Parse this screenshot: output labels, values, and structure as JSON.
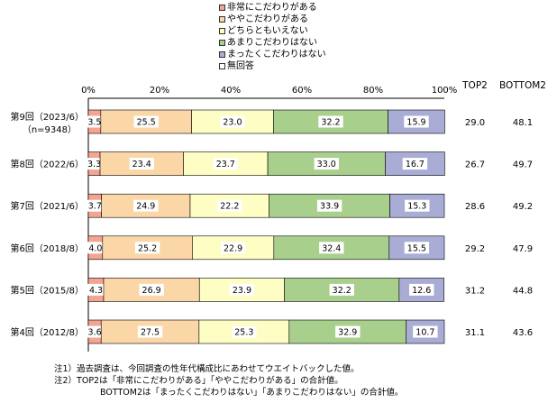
{
  "chart_data": {
    "type": "bar",
    "orientation": "horizontal-stacked-100",
    "categories": [
      "第9回（2023/6）\n（n=9348）",
      "第8回（2022/6）",
      "第7回（2021/6）",
      "第6回（2018/8）",
      "第5回（2015/8）",
      "第4回（2012/8）"
    ],
    "series": [
      {
        "name": "非常にこだわりがある",
        "color": "#f4a491",
        "values": [
          3.5,
          3.3,
          3.7,
          4.0,
          4.3,
          3.6
        ]
      },
      {
        "name": "ややこだわりがある",
        "color": "#fbd7a8",
        "values": [
          25.5,
          23.4,
          24.9,
          25.2,
          26.9,
          27.5
        ]
      },
      {
        "name": "どちらともいえない",
        "color": "#fdfdc4",
        "values": [
          23.0,
          23.7,
          22.2,
          22.9,
          23.9,
          25.3
        ]
      },
      {
        "name": "あまりこだわりはない",
        "color": "#a8cf8c",
        "values": [
          32.2,
          33.0,
          33.9,
          32.4,
          32.2,
          32.9
        ]
      },
      {
        "name": "まったくこだわりはない",
        "color": "#a9add5",
        "values": [
          15.9,
          16.7,
          15.3,
          15.5,
          12.6,
          10.7
        ]
      },
      {
        "name": "無回答",
        "color": "#ffffff",
        "values": [
          0,
          0,
          0,
          0,
          0,
          0
        ]
      }
    ],
    "xlim": [
      0,
      100
    ],
    "xticks": [
      "0%",
      "20%",
      "40%",
      "60%",
      "80%",
      "100%"
    ],
    "value_labels": [
      [
        "3.5",
        "25.5",
        "23.0",
        "32.2",
        "15.9"
      ],
      [
        "3.3",
        "23.4",
        "23.7",
        "33.0",
        "16.7"
      ],
      [
        "3.7",
        "24.9",
        "22.2",
        "33.9",
        "15.3"
      ],
      [
        "4.0",
        "25.2",
        "22.9",
        "32.4",
        "15.5"
      ],
      [
        "4.3",
        "26.9",
        "23.9",
        "32.2",
        "12.6"
      ],
      [
        "3.6",
        "27.5",
        "25.3",
        "32.9",
        "10.7"
      ]
    ],
    "summary_headers": [
      "TOP2",
      "BOTTOM2"
    ],
    "top2": [
      "29.0",
      "26.7",
      "28.6",
      "29.2",
      "31.2",
      "31.1"
    ],
    "bottom2": [
      "48.1",
      "49.7",
      "49.2",
      "47.9",
      "44.8",
      "43.6"
    ],
    "legend_position": "top-center"
  },
  "notes": [
    "注1）過去調査は、今回調査の性年代構成比にあわせてウエイトバックした値。",
    "注2）TOP2は「非常にこだわりがある」「ややこだわりがある」の合計値。",
    "BOTTOM2は「まったくこだわりはない」「あまりこだわりはない」の合計値。"
  ]
}
